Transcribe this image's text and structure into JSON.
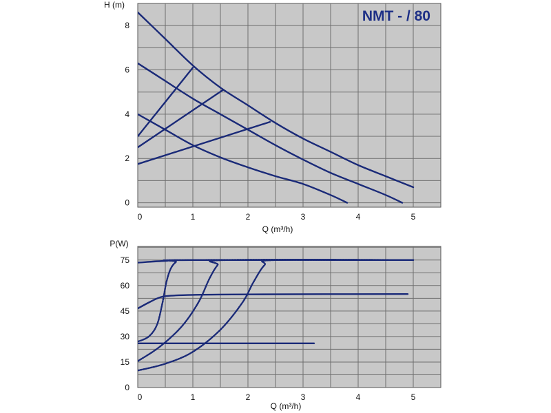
{
  "title": "NMT - / 80",
  "colors": {
    "plot_bg": "#c8c8c8",
    "grid": "#6e6e6e",
    "curve": "#1a2a78",
    "title": "#1d2f86"
  },
  "chart_data": [
    {
      "type": "line",
      "name": "head-chart",
      "ylabel": "H (m)",
      "xlabel": "Q (m³/h)",
      "xlim": [
        0,
        5.5
      ],
      "ylim": [
        -0.2,
        9.0
      ],
      "x_ticks": [
        "0",
        "1",
        "2",
        "3",
        "4",
        "5"
      ],
      "x_tick_values": [
        0,
        1,
        2,
        3,
        4,
        5
      ],
      "y_ticks": [
        "0",
        "2",
        "4",
        "6",
        "8"
      ],
      "y_tick_values": [
        0,
        2,
        4,
        6,
        8
      ],
      "grid": true,
      "series": [
        {
          "style": "solid",
          "points": [
            [
              0,
              8.6
            ],
            [
              0.5,
              7.4
            ],
            [
              1.0,
              6.2
            ],
            [
              1.5,
              5.2
            ],
            [
              2.0,
              4.4
            ],
            [
              2.5,
              3.6
            ],
            [
              3.0,
              2.9
            ],
            [
              3.5,
              2.3
            ],
            [
              4.0,
              1.7
            ],
            [
              4.5,
              1.2
            ],
            [
              5.0,
              0.7
            ]
          ]
        },
        {
          "style": "solid",
          "points": [
            [
              0,
              6.3
            ],
            [
              0.5,
              5.5
            ],
            [
              1.0,
              4.7
            ],
            [
              1.5,
              4.0
            ],
            [
              2.0,
              3.3
            ],
            [
              2.5,
              2.6
            ],
            [
              3.0,
              1.95
            ],
            [
              3.5,
              1.35
            ],
            [
              4.0,
              0.85
            ],
            [
              4.5,
              0.35
            ],
            [
              4.8,
              0.0
            ]
          ]
        },
        {
          "style": "solid",
          "points": [
            [
              0,
              4.0
            ],
            [
              0.5,
              3.3
            ],
            [
              1.0,
              2.6
            ],
            [
              1.5,
              2.05
            ],
            [
              2.0,
              1.6
            ],
            [
              2.5,
              1.2
            ],
            [
              3.0,
              0.85
            ],
            [
              3.5,
              0.35
            ],
            [
              3.8,
              0.0
            ]
          ]
        },
        {
          "style": "solid",
          "points": [
            [
              0,
              3.0
            ],
            [
              1.0,
              6.1
            ]
          ]
        },
        {
          "style": "solid",
          "points": [
            [
              0,
              2.5
            ],
            [
              1.55,
              5.1
            ]
          ]
        },
        {
          "style": "solid",
          "points": [
            [
              0,
              1.75
            ],
            [
              2.4,
              3.65
            ]
          ]
        }
      ]
    },
    {
      "type": "line",
      "name": "power-chart",
      "ylabel": "P(W)",
      "xlabel": "Q (m³/h)",
      "xlim": [
        0,
        5.5
      ],
      "ylim": [
        0,
        83
      ],
      "x_ticks": [
        "0",
        "1",
        "2",
        "3",
        "4",
        "5"
      ],
      "x_tick_values": [
        0,
        1,
        2,
        3,
        4,
        5
      ],
      "y_ticks": [
        "0",
        "15",
        "30",
        "45",
        "60",
        "75"
      ],
      "y_tick_values": [
        0,
        15,
        30,
        45,
        60,
        75
      ],
      "grid": true,
      "series": [
        {
          "style": "solid",
          "points": [
            [
              0,
              73.5
            ],
            [
              0.5,
              74.5
            ],
            [
              1.0,
              75.0
            ],
            [
              5.0,
              75.0
            ]
          ]
        },
        {
          "style": "solid",
          "points": [
            [
              0,
              46.5
            ],
            [
              0.2,
              50.0
            ],
            [
              0.4,
              53.0
            ],
            [
              0.6,
              54.0
            ],
            [
              1.0,
              54.5
            ],
            [
              2.0,
              54.8
            ],
            [
              4.9,
              55.0
            ]
          ]
        },
        {
          "style": "solid",
          "points": [
            [
              0,
              26.0
            ],
            [
              3.2,
              26.0
            ]
          ]
        },
        {
          "style": "dashed",
          "points": [
            [
              0,
              27.0
            ],
            [
              0.2,
              30.0
            ],
            [
              0.35,
              37.0
            ],
            [
              0.45,
              50.0
            ],
            [
              0.52,
              62.0
            ],
            [
              0.6,
              70.0
            ],
            [
              0.7,
              74.0
            ],
            [
              0.8,
              75.0
            ],
            [
              5.0,
              75.0
            ]
          ]
        },
        {
          "style": "dashed",
          "points": [
            [
              0,
              15.5
            ],
            [
              0.4,
              24.0
            ],
            [
              0.8,
              36.0
            ],
            [
              1.1,
              50.0
            ],
            [
              1.3,
              64.0
            ],
            [
              1.45,
              72.0
            ],
            [
              1.6,
              75.0
            ],
            [
              5.0,
              75.0
            ]
          ]
        },
        {
          "style": "dashed",
          "points": [
            [
              0,
              10.0
            ],
            [
              0.5,
              14.0
            ],
            [
              1.0,
              21.0
            ],
            [
              1.5,
              34.0
            ],
            [
              1.9,
              50.0
            ],
            [
              2.1,
              62.0
            ],
            [
              2.3,
              72.0
            ],
            [
              2.5,
              75.0
            ],
            [
              5.0,
              75.0
            ]
          ]
        }
      ]
    }
  ]
}
